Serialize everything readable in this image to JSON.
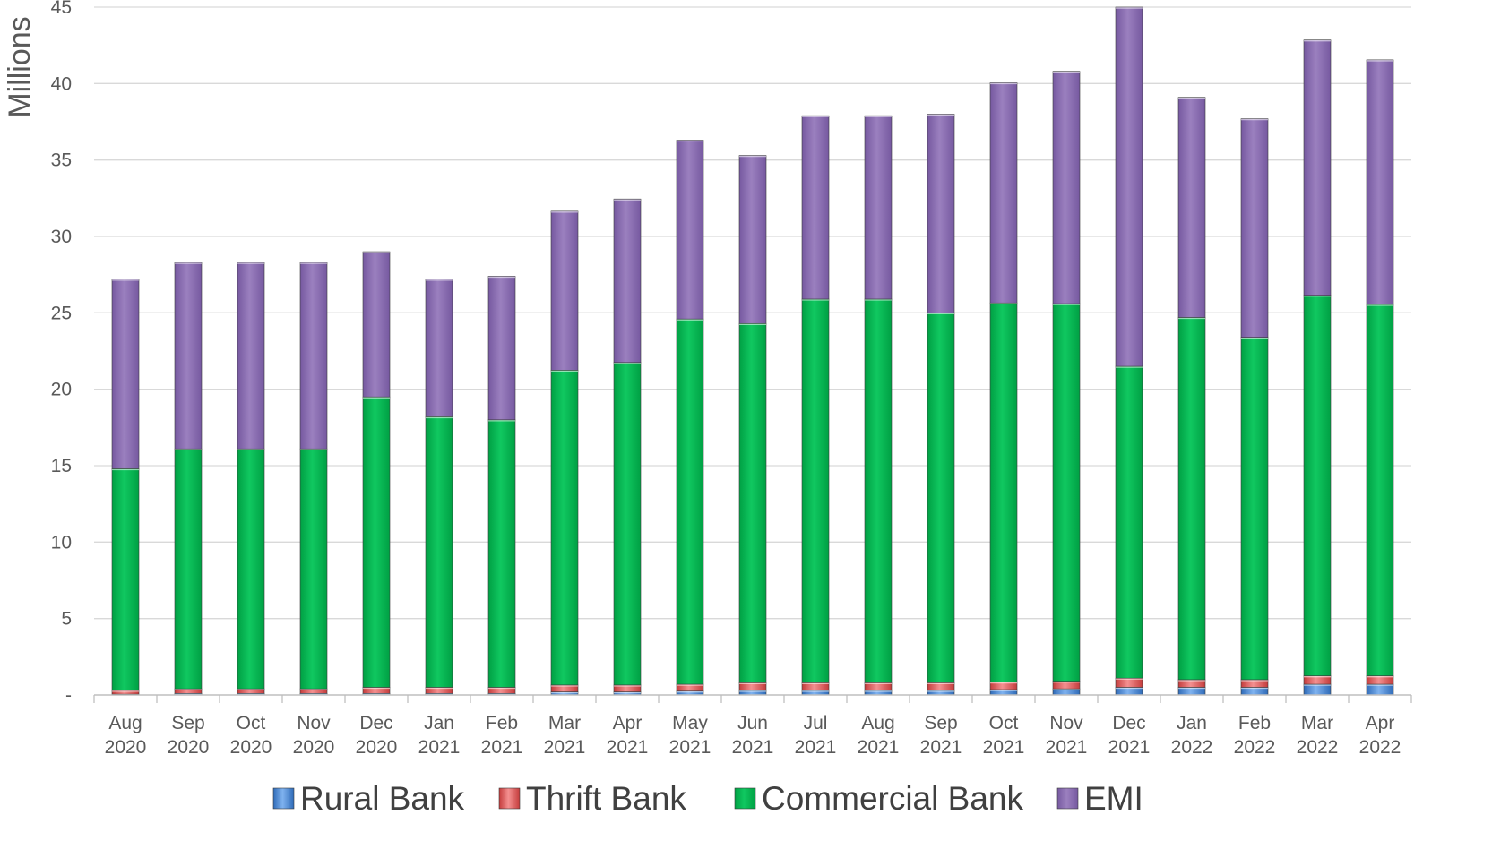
{
  "chart_data": {
    "type": "bar",
    "stacked": true,
    "title": "",
    "xlabel": "",
    "ylabel": "Millions",
    "ylim": [
      0,
      45
    ],
    "yticks": [
      {
        "value": 0,
        "label": "-"
      },
      {
        "value": 5,
        "label": "5"
      },
      {
        "value": 10,
        "label": "10"
      },
      {
        "value": 15,
        "label": "15"
      },
      {
        "value": 20,
        "label": "20"
      },
      {
        "value": 25,
        "label": "25"
      },
      {
        "value": 30,
        "label": "30"
      },
      {
        "value": 35,
        "label": "35"
      },
      {
        "value": 40,
        "label": "40"
      },
      {
        "value": 45,
        "label": "45"
      }
    ],
    "grid": true,
    "legend_position": "bottom",
    "categories": [
      {
        "month": "Aug",
        "year": "2020"
      },
      {
        "month": "Sep",
        "year": "2020"
      },
      {
        "month": "Oct",
        "year": "2020"
      },
      {
        "month": "Nov",
        "year": "2020"
      },
      {
        "month": "Dec",
        "year": "2020"
      },
      {
        "month": "Jan",
        "year": "2021"
      },
      {
        "month": "Feb",
        "year": "2021"
      },
      {
        "month": "Mar",
        "year": "2021"
      },
      {
        "month": "Apr",
        "year": "2021"
      },
      {
        "month": "May",
        "year": "2021"
      },
      {
        "month": "Jun",
        "year": "2021"
      },
      {
        "month": "Jul",
        "year": "2021"
      },
      {
        "month": "Aug",
        "year": "2021"
      },
      {
        "month": "Sep",
        "year": "2021"
      },
      {
        "month": "Oct",
        "year": "2021"
      },
      {
        "month": "Nov",
        "year": "2021"
      },
      {
        "month": "Dec",
        "year": "2021"
      },
      {
        "month": "Jan",
        "year": "2022"
      },
      {
        "month": "Feb",
        "year": "2022"
      },
      {
        "month": "Mar",
        "year": "2022"
      },
      {
        "month": "Apr",
        "year": "2022"
      }
    ],
    "series": [
      {
        "name": "Rural Bank",
        "color": "#3f7fd0",
        "values": [
          0.05,
          0.1,
          0.1,
          0.1,
          0.1,
          0.1,
          0.1,
          0.2,
          0.2,
          0.25,
          0.3,
          0.3,
          0.3,
          0.3,
          0.35,
          0.4,
          0.5,
          0.5,
          0.5,
          0.7,
          0.7
        ]
      },
      {
        "name": "Thrift Bank",
        "color": "#e05a5a",
        "values": [
          0.25,
          0.3,
          0.3,
          0.3,
          0.4,
          0.4,
          0.4,
          0.45,
          0.45,
          0.45,
          0.5,
          0.5,
          0.5,
          0.5,
          0.5,
          0.5,
          0.6,
          0.5,
          0.5,
          0.55,
          0.55
        ]
      },
      {
        "name": "Commercial Bank",
        "color": "#00b050",
        "values": [
          14.5,
          15.7,
          15.7,
          15.7,
          19.0,
          17.7,
          17.5,
          20.6,
          21.1,
          23.9,
          23.5,
          25.1,
          25.1,
          24.2,
          24.8,
          24.7,
          20.4,
          23.7,
          22.4,
          24.9,
          24.3
        ]
      },
      {
        "name": "EMI",
        "color": "#8064a2",
        "values": [
          12.4,
          12.2,
          12.2,
          12.2,
          9.5,
          9.0,
          9.4,
          10.4,
          10.7,
          11.7,
          11.0,
          12.0,
          12.0,
          13.0,
          14.4,
          15.2,
          23.5,
          14.4,
          14.3,
          16.7,
          16.0
        ]
      }
    ]
  }
}
